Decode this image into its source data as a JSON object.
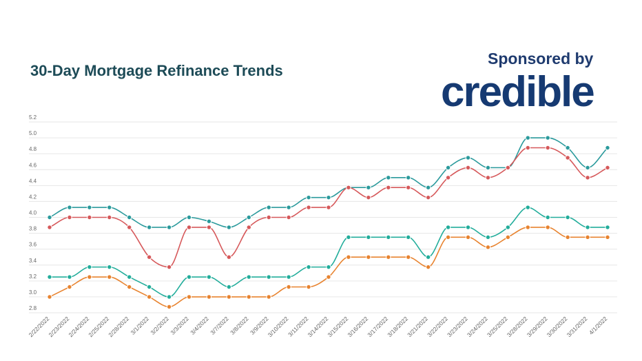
{
  "chart_data": {
    "type": "line",
    "title": "30-Day Mortgage Refinance Trends",
    "sponsor_text": "Sponsored by",
    "sponsor_logo": "credible",
    "categories": [
      "2/22/2022",
      "2/23/2022",
      "2/24/2022",
      "2/25/2022",
      "2/28/2022",
      "3/1/2022",
      "3/2/2022",
      "3/3/2022",
      "3/4/2022",
      "3/7/2022",
      "3/8/2022",
      "3/9/2022",
      "3/10/2022",
      "3/11/2022",
      "3/14/2022",
      "3/15/2022",
      "3/16/2022",
      "3/17/2022",
      "3/18/2022",
      "3/21/2022",
      "3/22/2022",
      "3/23/2022",
      "3/24/2022",
      "3/25/2022",
      "3/28/2022",
      "3/29/2022",
      "3/30/2022",
      "3/31/2022",
      "4/1/2022"
    ],
    "yticks": [
      "2.8",
      "3.0",
      "3.2",
      "3.4",
      "3.6",
      "3.8",
      "4.0",
      "4.2",
      "4.4",
      "4.6",
      "4.8",
      "5.0",
      "5.2"
    ],
    "ylim": [
      2.8,
      5.2
    ],
    "grid": true,
    "series": [
      {
        "color": "#2a9a9c",
        "values": [
          4.0,
          4.125,
          4.125,
          4.125,
          4.0,
          3.875,
          3.875,
          4.0,
          3.95,
          3.875,
          4.0,
          4.125,
          4.125,
          4.25,
          4.25,
          4.375,
          4.375,
          4.5,
          4.5,
          4.375,
          4.625,
          4.75,
          4.625,
          4.625,
          5.0,
          5.0,
          4.875,
          4.625,
          4.875
        ]
      },
      {
        "color": "#d6585a",
        "values": [
          3.875,
          4.0,
          4.0,
          4.0,
          3.875,
          3.5,
          3.375,
          3.875,
          3.875,
          3.5,
          3.875,
          4.0,
          4.0,
          4.125,
          4.125,
          4.375,
          4.25,
          4.375,
          4.375,
          4.25,
          4.5,
          4.625,
          4.5,
          4.625,
          4.875,
          4.875,
          4.75,
          4.5,
          4.625
        ]
      },
      {
        "color": "#22ad9b",
        "values": [
          3.25,
          3.25,
          3.375,
          3.375,
          3.25,
          3.125,
          3.0,
          3.25,
          3.25,
          3.125,
          3.25,
          3.25,
          3.25,
          3.375,
          3.375,
          3.75,
          3.75,
          3.75,
          3.75,
          3.5,
          3.875,
          3.875,
          3.75,
          3.875,
          4.125,
          4.0,
          4.0,
          3.875,
          3.875
        ]
      },
      {
        "color": "#e8832f",
        "values": [
          3.0,
          3.125,
          3.25,
          3.25,
          3.125,
          3.0,
          2.875,
          3.0,
          3.0,
          3.0,
          3.0,
          3.0,
          3.125,
          3.125,
          3.25,
          3.5,
          3.5,
          3.5,
          3.5,
          3.375,
          3.75,
          3.75,
          3.625,
          3.75,
          3.875,
          3.875,
          3.75,
          3.75,
          3.75
        ]
      }
    ]
  }
}
